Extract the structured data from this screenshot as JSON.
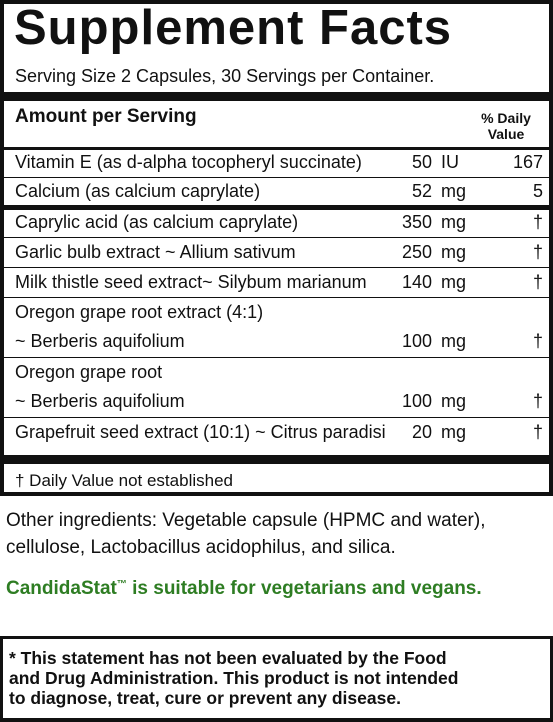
{
  "panel": {
    "title": "Supplement Facts",
    "serving_size": "Serving Size 2 Capsules, 30 Servings per Container.",
    "amount_header": "Amount per Serving",
    "dv_header_line1": "% Daily",
    "dv_header_line2": "Value",
    "rows": [
      {
        "name": "Vitamin E (as d-alpha tocopheryl succinate)",
        "amount": "50",
        "unit": "IU",
        "dv": "167"
      },
      {
        "name": "Calcium (as calcium caprylate)",
        "amount": "52",
        "unit": "mg",
        "dv": "5"
      },
      {
        "name": "Caprylic acid (as calcium caprylate)",
        "amount": "350",
        "unit": "mg",
        "dv": "†"
      },
      {
        "name": "Garlic bulb extract ~ Allium sativum",
        "amount": "250",
        "unit": "mg",
        "dv": "†"
      },
      {
        "name": "Milk thistle seed extract~ Silybum marianum",
        "amount": "140",
        "unit": "mg",
        "dv": "†"
      },
      {
        "name": "Oregon grape root extract (4:1)",
        "name2": "~ Berberis aquifolium",
        "amount": "100",
        "unit": "mg",
        "dv": "†"
      },
      {
        "name": "Oregon grape root",
        "name2": "~ Berberis aquifolium",
        "amount": "100",
        "unit": "mg",
        "dv": "†"
      },
      {
        "name": "Grapefruit seed extract (10:1) ~ Citrus paradisi",
        "amount": "20",
        "unit": "mg",
        "dv": "†"
      }
    ],
    "footnote": "† Daily Value not established"
  },
  "other_ingredients": {
    "line1": "Other ingredients: Vegetable capsule (HPMC and water),",
    "line2": "cellulose, Lactobacillus acidophilus, and silica."
  },
  "vegan_note": {
    "brand": "CandidaStat",
    "trademark": "™",
    "text": " is suitable for vegetarians and vegans.",
    "color": "#2e7d23"
  },
  "disclaimer": {
    "line1": "* This statement has not been evaluated by the Food",
    "line2": "and Drug Administration. This product is not intended",
    "line3": "to diagnose, treat, cure or prevent any disease."
  }
}
